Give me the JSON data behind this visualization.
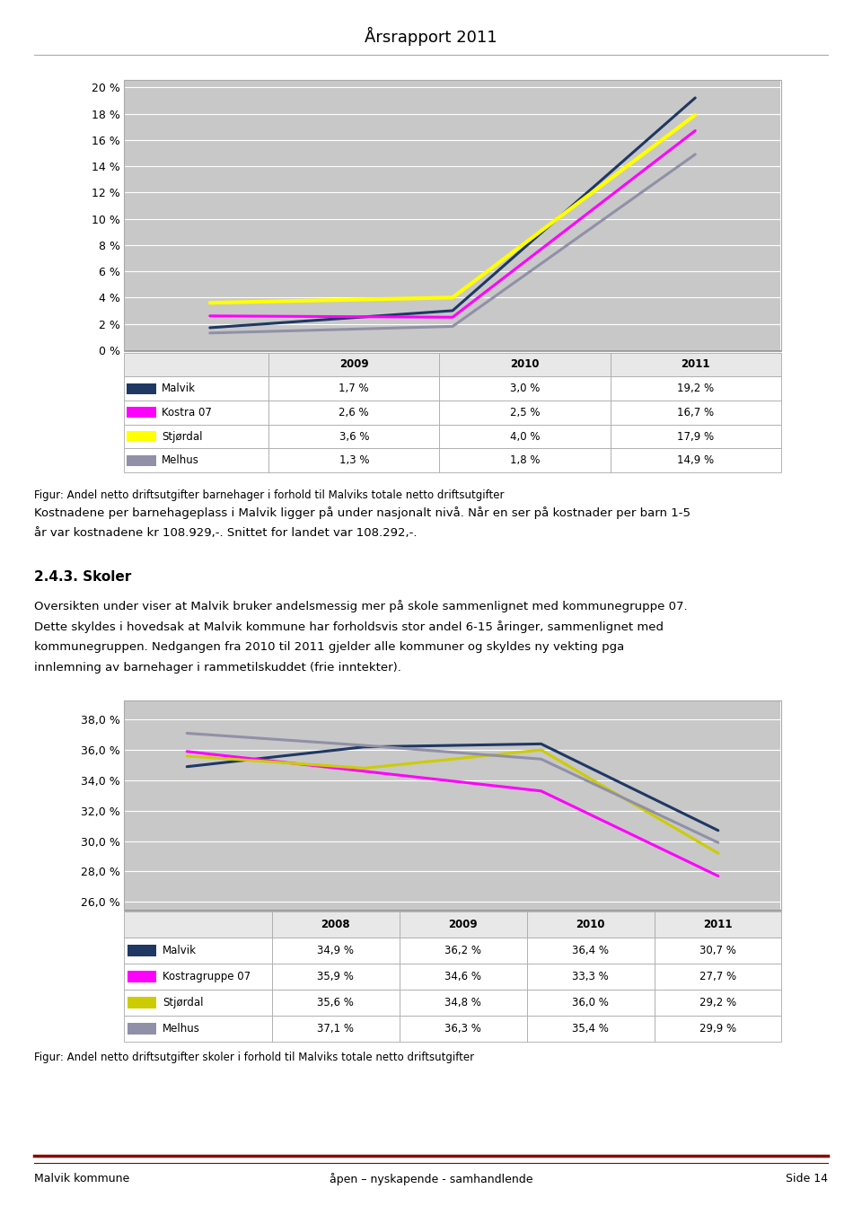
{
  "title": "Årsrapport 2011",
  "chart1": {
    "years": [
      2009,
      2010,
      2011
    ],
    "series": [
      {
        "label": "Malvik",
        "color": "#1F3864",
        "values": [
          1.7,
          3.0,
          19.2
        ],
        "lw": 2.2
      },
      {
        "label": "Kostra 07",
        "color": "#FF00FF",
        "values": [
          2.6,
          2.5,
          16.7
        ],
        "lw": 2.2
      },
      {
        "label": "Stjørdal",
        "color": "#FFFF00",
        "values": [
          3.6,
          4.0,
          17.9
        ],
        "lw": 3.0
      },
      {
        "label": "Melhus",
        "color": "#9090A8",
        "values": [
          1.3,
          1.8,
          14.9
        ],
        "lw": 2.2
      }
    ],
    "yticks": [
      0,
      2,
      4,
      6,
      8,
      10,
      12,
      14,
      16,
      18,
      20
    ],
    "ylim": [
      0,
      20.5
    ],
    "ytick_labels": [
      "0 %",
      "2 %",
      "4 %",
      "6 %",
      "8 %",
      "10 %",
      "12 %",
      "14 %",
      "16 %",
      "18 %",
      "20 %"
    ],
    "fig_caption": "Figur: Andel netto driftsutgifter barnehager i forhold til Malviks totale netto driftsutgifter",
    "table_header": [
      "",
      "2009",
      "2010",
      "2011"
    ],
    "table_rows": [
      [
        "Malvik",
        "1,7 %",
        "3,0 %",
        "19,2 %"
      ],
      [
        "Kostra 07",
        "2,6 %",
        "2,5 %",
        "16,7 %"
      ],
      [
        "Stjørdal",
        "3,6 %",
        "4,0 %",
        "17,9 %"
      ],
      [
        "Melhus",
        "1,3 %",
        "1,8 %",
        "14,9 %"
      ]
    ],
    "row_colors": [
      "#1F3864",
      "#FF00FF",
      "#FFFF00",
      "#9090A8"
    ]
  },
  "text_block_1": "Kostnadene per barnehageplass i Malvik ligger på under nasjonalt nivå. Når en ser på kostnader per barn 1-5",
  "text_block_2": "år var kostnadene kr 108.929,-. Snittet for landet var 108.292,-.",
  "section_header": "2.4.3. Skoler",
  "section_text": [
    "Oversikten under viser at Malvik bruker andelsmessig mer på skole sammenlignet med kommunegruppe 07.",
    "Dette skyldes i hovedsak at Malvik kommune har forholdsvis stor andel 6-15 åringer, sammenlignet med",
    "kommunegruppen. Nedgangen fra 2010 til 2011 gjelder alle kommuner og skyldes ny vekting pga",
    "innlemning av barnehager i rammetilskuddet (frie inntekter)."
  ],
  "chart2": {
    "years": [
      2008,
      2009,
      2010,
      2011
    ],
    "series": [
      {
        "label": "Malvik",
        "color": "#1F3864",
        "values": [
          34.9,
          36.2,
          36.4,
          30.7
        ],
        "lw": 2.2
      },
      {
        "label": "Kostragruppe 07",
        "color": "#FF00FF",
        "values": [
          35.9,
          34.6,
          33.3,
          27.7
        ],
        "lw": 2.2
      },
      {
        "label": "Stjørdal",
        "color": "#CCCC00",
        "values": [
          35.6,
          34.8,
          36.0,
          29.2
        ],
        "lw": 2.2
      },
      {
        "label": "Melhus",
        "color": "#9090A8",
        "values": [
          37.1,
          36.3,
          35.4,
          29.9
        ],
        "lw": 2.2
      }
    ],
    "yticks": [
      26,
      28,
      30,
      32,
      34,
      36,
      38
    ],
    "ylim": [
      25.5,
      39.2
    ],
    "ytick_labels": [
      "26,0 %",
      "28,0 %",
      "30,0 %",
      "32,0 %",
      "34,0 %",
      "36,0 %",
      "38,0 %"
    ],
    "fig_caption": "Figur: Andel netto driftsutgifter skoler i forhold til Malviks totale netto driftsutgifter",
    "table_header": [
      "",
      "2008",
      "2009",
      "2010",
      "2011"
    ],
    "table_rows": [
      [
        "Malvik",
        "34,9 %",
        "36,2 %",
        "36,4 %",
        "30,7 %"
      ],
      [
        "Kostragruppe 07",
        "35,9 %",
        "34,6 %",
        "33,3 %",
        "27,7 %"
      ],
      [
        "Stjørdal",
        "35,6 %",
        "34,8 %",
        "36,0 %",
        "29,2 %"
      ],
      [
        "Melhus",
        "37,1 %",
        "36,3 %",
        "35,4 %",
        "29,9 %"
      ]
    ],
    "row_colors": [
      "#1F3864",
      "#FF00FF",
      "#CCCC00",
      "#9090A8"
    ]
  },
  "footer_left": "Malvik kommune",
  "footer_center": "åpen – nyskapende - samhandlende",
  "footer_right": "Side 14",
  "bg_color": "#FFFFFF",
  "plot_bg": "#C8C8C8",
  "outer_box_bg": "#F0F0F0"
}
